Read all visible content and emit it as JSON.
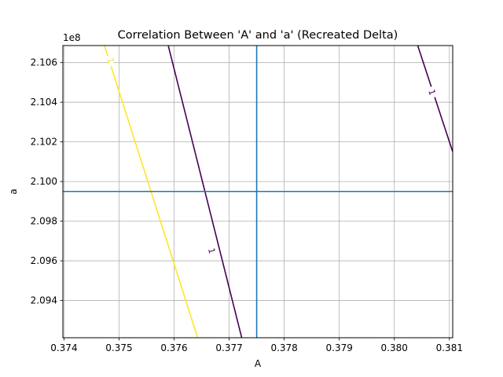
{
  "chart_data": {
    "type": "contour",
    "title": "Correlation Between 'A' and 'a' (Recreated Delta)",
    "xlabel": "A",
    "ylabel": "a",
    "y_offset_text": "1e8",
    "xlim": [
      0.37398,
      0.38106
    ],
    "ylim": [
      2.09212,
      2.10686
    ],
    "x_ticks": [
      {
        "value": 0.374,
        "label": "0.374"
      },
      {
        "value": 0.375,
        "label": "0.375"
      },
      {
        "value": 0.376,
        "label": "0.376"
      },
      {
        "value": 0.377,
        "label": "0.377"
      },
      {
        "value": 0.378,
        "label": "0.378"
      },
      {
        "value": 0.379,
        "label": "0.379"
      },
      {
        "value": 0.38,
        "label": "0.380"
      },
      {
        "value": 0.381,
        "label": "0.381"
      }
    ],
    "y_ticks": [
      {
        "value": 2.094,
        "label": "2.094"
      },
      {
        "value": 2.096,
        "label": "2.096"
      },
      {
        "value": 2.098,
        "label": "2.098"
      },
      {
        "value": 2.1,
        "label": "2.100"
      },
      {
        "value": 2.102,
        "label": "2.102"
      },
      {
        "value": 2.104,
        "label": "2.104"
      },
      {
        "value": 2.106,
        "label": "2.106"
      }
    ],
    "grid": true,
    "contours": [
      {
        "level_label": "1",
        "color": "#fde725",
        "points": [
          [
            0.37473,
            2.1069
          ],
          [
            0.37643,
            2.0921
          ]
        ],
        "label_at": [
          0.37485,
          2.1061
        ]
      },
      {
        "level_label": "1",
        "color": "#440154",
        "points": [
          [
            0.37589,
            2.1069
          ],
          [
            0.37723,
            2.0921
          ]
        ],
        "label_at": [
          0.37668,
          2.0965
        ]
      },
      {
        "level_label": "1",
        "color": "#440154",
        "points": [
          [
            0.38042,
            2.1069
          ],
          [
            0.38106,
            2.1015
          ]
        ],
        "label_at": [
          0.38068,
          2.1045
        ]
      }
    ],
    "reference_lines": {
      "color": "#1f77b4",
      "x": 0.3775,
      "y": 2.0995
    }
  }
}
